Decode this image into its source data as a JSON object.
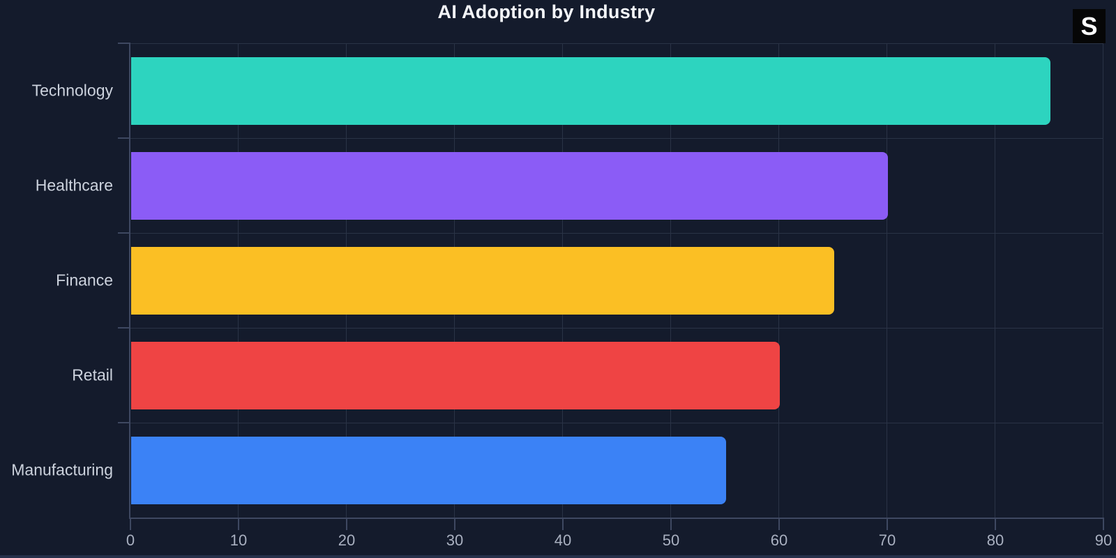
{
  "page": {
    "background": "#141B2C"
  },
  "badge": {
    "letter": "S"
  },
  "chart_data": {
    "type": "bar",
    "orientation": "horizontal",
    "title": "AI Adoption by Industry",
    "categories": [
      "Technology",
      "Healthcare",
      "Finance",
      "Retail",
      "Manufacturing"
    ],
    "values": [
      85,
      70,
      65,
      60,
      55
    ],
    "bar_colors": [
      "#2DD4BF",
      "#8B5CF6",
      "#FBBF24",
      "#EF4444",
      "#3B82F6"
    ],
    "xlim": [
      0,
      90
    ],
    "xticks": [
      0,
      10,
      20,
      30,
      40,
      50,
      60,
      70,
      80,
      90
    ],
    "xlabel": "",
    "ylabel": "",
    "grid": true,
    "legend": false,
    "colors": {
      "background": "#141B2C",
      "gridline": "#2A3346",
      "axis_line": "#3E4861",
      "title_text": "#F3F5F9",
      "category_label_text": "#CCD2DD",
      "tick_label_text": "#A9B0C0"
    }
  }
}
